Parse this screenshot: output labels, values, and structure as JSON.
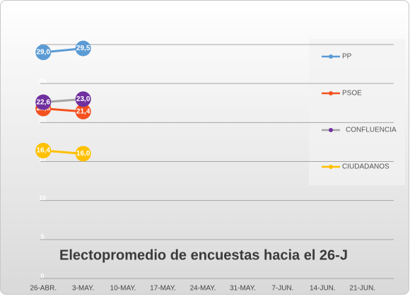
{
  "chart_data": {
    "type": "line",
    "title": "Electopromedio de encuestas hacia el 26-J",
    "categories": [
      "26-ABR.",
      "3-MAY.",
      "10-MAY.",
      "17-MAY.",
      "24-MAY.",
      "31-MAY.",
      "7-JUN.",
      "14-JUN.",
      "21-JUN."
    ],
    "series": [
      {
        "name": "PP",
        "color": "#5b9bd5",
        "values": [
          29.0,
          29.5,
          null,
          null,
          null,
          null,
          null,
          null,
          null
        ],
        "value_labels": [
          "29,0",
          "29,5",
          null,
          null,
          null,
          null,
          null,
          null,
          null
        ]
      },
      {
        "name": "PSOE",
        "color": "#f4511e",
        "values": [
          21.8,
          21.4,
          null,
          null,
          null,
          null,
          null,
          null,
          null
        ],
        "value_labels": [
          "21,8",
          "21,4",
          null,
          null,
          null,
          null,
          null,
          null,
          null
        ]
      },
      {
        "name": "CONFLUENCIA",
        "color": "#7030a0",
        "line_color": "#a5a5a5",
        "values": [
          22.6,
          23.0,
          null,
          null,
          null,
          null,
          null,
          null,
          null
        ],
        "value_labels": [
          "22,6",
          "23,0",
          null,
          null,
          null,
          null,
          null,
          null,
          null
        ]
      },
      {
        "name": "CIUDADANOS",
        "color": "#ffc000",
        "values": [
          16.4,
          16.0,
          null,
          null,
          null,
          null,
          null,
          null,
          null
        ],
        "value_labels": [
          "16,4",
          "16,0",
          null,
          null,
          null,
          null,
          null,
          null,
          null
        ]
      }
    ],
    "ylim": [
      0,
      30
    ],
    "yticks": [
      0,
      5,
      10,
      15,
      20,
      25,
      30
    ],
    "grid": true,
    "legend": "right"
  }
}
